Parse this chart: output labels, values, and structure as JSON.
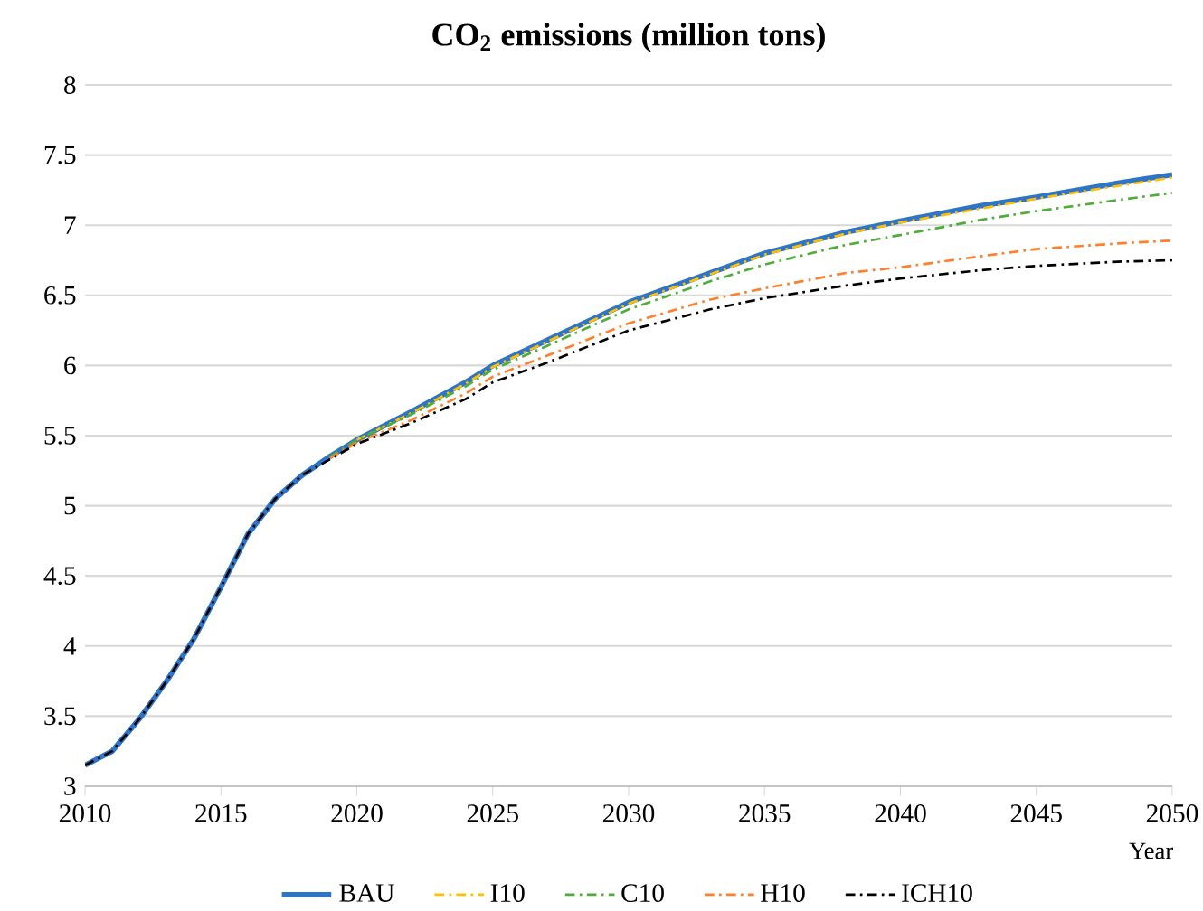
{
  "chart_data": {
    "type": "line",
    "title": "CO$_{2}$ emissions (million tons)",
    "xlabel": "Year",
    "xlim": [
      2010,
      2050
    ],
    "xticks": [
      2010,
      2015,
      2020,
      2025,
      2030,
      2035,
      2040,
      2045,
      2050
    ],
    "ylim": [
      3,
      8
    ],
    "yticks": [
      3,
      3.5,
      4,
      4.5,
      5,
      5.5,
      6,
      6.5,
      7,
      7.5,
      8
    ],
    "grid": "y",
    "legend": "bottom",
    "marker": "none",
    "x": [
      2010,
      2011,
      2012,
      2013,
      2014,
      2015,
      2016,
      2017,
      2018,
      2019,
      2020,
      2022,
      2024,
      2025,
      2027,
      2030,
      2033,
      2035,
      2038,
      2040,
      2043,
      2045,
      2048,
      2050
    ],
    "series": [
      {
        "name": "BAU",
        "color": "#2e75c8",
        "line_style": "solid",
        "values": [
          3.15,
          3.25,
          3.48,
          3.75,
          4.05,
          4.42,
          4.8,
          5.05,
          5.22,
          5.35,
          5.47,
          5.67,
          5.88,
          6.0,
          6.18,
          6.45,
          6.66,
          6.8,
          6.95,
          7.03,
          7.14,
          7.2,
          7.3,
          7.36
        ]
      },
      {
        "name": "I10",
        "color": "#ffc000",
        "line_style": "dashdot",
        "values": [
          null,
          null,
          null,
          null,
          null,
          null,
          null,
          null,
          null,
          null,
          5.47,
          5.66,
          5.87,
          5.99,
          6.17,
          6.44,
          6.65,
          6.79,
          6.94,
          7.02,
          7.12,
          7.19,
          7.28,
          7.34
        ]
      },
      {
        "name": "C10",
        "color": "#4fad3a",
        "line_style": "dashdot",
        "values": [
          null,
          null,
          null,
          null,
          null,
          null,
          null,
          null,
          null,
          5.35,
          5.47,
          5.65,
          5.85,
          5.97,
          6.14,
          6.4,
          6.6,
          6.72,
          6.86,
          6.93,
          7.04,
          7.1,
          7.18,
          7.23
        ]
      },
      {
        "name": "H10",
        "color": "#ff7f2a",
        "line_style": "dashdot",
        "values": [
          null,
          null,
          null,
          null,
          null,
          null,
          null,
          null,
          null,
          5.34,
          5.45,
          5.61,
          5.8,
          5.92,
          6.07,
          6.3,
          6.47,
          6.55,
          6.66,
          6.7,
          6.78,
          6.83,
          6.87,
          6.89
        ]
      },
      {
        "name": "ICH10",
        "color": "#000000",
        "line_style": "dashdot",
        "values": [
          3.15,
          3.25,
          3.48,
          3.75,
          4.05,
          4.42,
          4.8,
          5.05,
          5.22,
          5.33,
          5.44,
          5.59,
          5.76,
          5.88,
          6.02,
          6.25,
          6.4,
          6.48,
          6.57,
          6.62,
          6.68,
          6.71,
          6.74,
          6.75
        ]
      }
    ]
  }
}
